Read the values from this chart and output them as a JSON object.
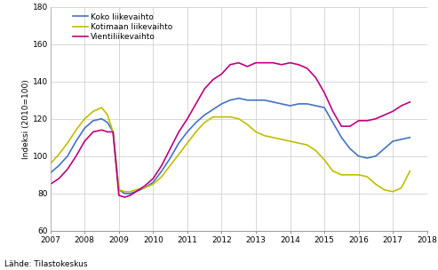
{
  "ylabel": "Indeksi (2010=100)",
  "source": "Lähde: Tilastokeskus",
  "xlim": [
    2007,
    2018
  ],
  "ylim": [
    60,
    180
  ],
  "yticks": [
    60,
    80,
    100,
    120,
    140,
    160,
    180
  ],
  "xticks": [
    2007,
    2008,
    2009,
    2010,
    2011,
    2012,
    2013,
    2014,
    2015,
    2016,
    2017,
    2018
  ],
  "legend_labels": [
    "Koko liikevaihto",
    "Kotimaan liikevaihto",
    "Vientiliikevaihto"
  ],
  "line_colors": [
    "#4472c4",
    "#bfbf00",
    "#c00080"
  ],
  "background_color": "#ffffff",
  "grid_color": "#c8c8c8",
  "koko": {
    "x": [
      2007.0,
      2007.25,
      2007.5,
      2007.75,
      2008.0,
      2008.25,
      2008.5,
      2008.67,
      2008.83,
      2009.0,
      2009.17,
      2009.33,
      2009.5,
      2009.75,
      2010.0,
      2010.25,
      2010.5,
      2010.75,
      2011.0,
      2011.25,
      2011.5,
      2011.75,
      2012.0,
      2012.25,
      2012.5,
      2012.75,
      2013.0,
      2013.25,
      2013.5,
      2013.75,
      2014.0,
      2014.25,
      2014.5,
      2014.75,
      2015.0,
      2015.25,
      2015.5,
      2015.75,
      2016.0,
      2016.25,
      2016.5,
      2016.75,
      2017.0,
      2017.25,
      2017.5
    ],
    "y": [
      91,
      95,
      100,
      108,
      115,
      119,
      120,
      118,
      113,
      82,
      80,
      80,
      81,
      83,
      86,
      92,
      99,
      107,
      113,
      118,
      122,
      125,
      128,
      130,
      131,
      130,
      130,
      130,
      129,
      128,
      127,
      128,
      128,
      127,
      126,
      118,
      110,
      104,
      100,
      99,
      100,
      104,
      108,
      109,
      110
    ]
  },
  "kotimaan": {
    "x": [
      2007.0,
      2007.25,
      2007.5,
      2007.75,
      2008.0,
      2008.25,
      2008.5,
      2008.67,
      2008.83,
      2009.0,
      2009.17,
      2009.33,
      2009.5,
      2009.75,
      2010.0,
      2010.25,
      2010.5,
      2010.75,
      2011.0,
      2011.25,
      2011.5,
      2011.75,
      2012.0,
      2012.25,
      2012.5,
      2012.75,
      2013.0,
      2013.25,
      2013.5,
      2013.75,
      2014.0,
      2014.25,
      2014.5,
      2014.75,
      2015.0,
      2015.25,
      2015.5,
      2015.75,
      2016.0,
      2016.25,
      2016.5,
      2016.75,
      2017.0,
      2017.25,
      2017.5
    ],
    "y": [
      96,
      101,
      107,
      114,
      120,
      124,
      126,
      122,
      113,
      82,
      81,
      81,
      82,
      83,
      85,
      89,
      95,
      101,
      107,
      113,
      118,
      121,
      121,
      121,
      120,
      117,
      113,
      111,
      110,
      109,
      108,
      107,
      106,
      103,
      98,
      92,
      90,
      90,
      90,
      89,
      85,
      82,
      81,
      83,
      92
    ]
  },
  "vienti": {
    "x": [
      2007.0,
      2007.25,
      2007.5,
      2007.75,
      2008.0,
      2008.25,
      2008.5,
      2008.67,
      2008.83,
      2009.0,
      2009.17,
      2009.33,
      2009.5,
      2009.75,
      2010.0,
      2010.25,
      2010.5,
      2010.75,
      2011.0,
      2011.25,
      2011.5,
      2011.75,
      2012.0,
      2012.25,
      2012.5,
      2012.75,
      2013.0,
      2013.25,
      2013.5,
      2013.75,
      2014.0,
      2014.25,
      2014.5,
      2014.75,
      2015.0,
      2015.25,
      2015.5,
      2015.75,
      2016.0,
      2016.25,
      2016.5,
      2016.75,
      2017.0,
      2017.25,
      2017.5
    ],
    "y": [
      85,
      88,
      93,
      100,
      108,
      113,
      114,
      113,
      113,
      79,
      78,
      79,
      81,
      84,
      88,
      95,
      104,
      113,
      120,
      128,
      136,
      141,
      144,
      149,
      150,
      148,
      150,
      150,
      150,
      149,
      150,
      149,
      147,
      142,
      134,
      124,
      116,
      116,
      119,
      119,
      120,
      122,
      124,
      127,
      129
    ]
  }
}
